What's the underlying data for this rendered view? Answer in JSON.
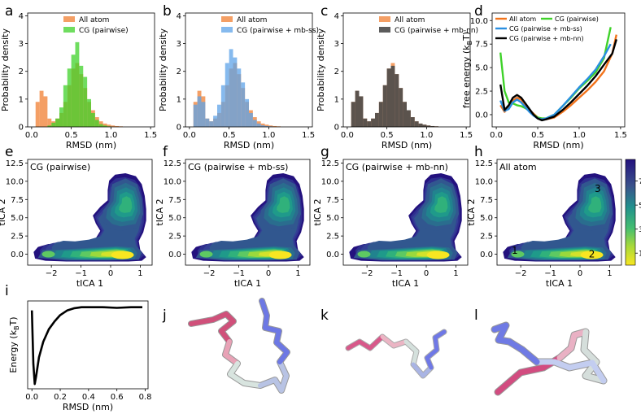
{
  "figure": {
    "panels": [
      "a",
      "b",
      "c",
      "d",
      "e",
      "f",
      "g",
      "h",
      "i",
      "j",
      "k",
      "l"
    ]
  },
  "chart_data": [
    {
      "id": "a",
      "type": "bar",
      "title": "",
      "xlabel": "RMSD (nm)",
      "ylabel": "Probability density",
      "xlim": [
        -0.05,
        1.55
      ],
      "ylim": [
        0,
        4.1
      ],
      "xticks": [
        "0.0",
        "0.5",
        "1.0",
        "1.5"
      ],
      "yticks": [
        "0",
        "1",
        "2",
        "3",
        "4"
      ],
      "bin_width": 0.05,
      "bin_start": 0.05,
      "series": [
        {
          "name": "All atom",
          "color": "#f28e4a",
          "opacity": 0.85,
          "values": [
            0.9,
            1.3,
            1.1,
            0.3,
            0.2,
            0.3,
            0.5,
            0.9,
            1.5,
            2.1,
            2.3,
            1.9,
            1.4,
            0.9,
            0.6,
            0.35,
            0.2,
            0.12,
            0.08,
            0.05,
            0.03,
            0.02
          ]
        },
        {
          "name": "CG (pairwise)",
          "color": "#3fd22a",
          "opacity": 0.75,
          "values": [
            0,
            0,
            0,
            0.05,
            0.15,
            0.3,
            0.7,
            1.5,
            2.1,
            2.6,
            3.05,
            2.2,
            1.8,
            1.0,
            0.5,
            0.25,
            0.1,
            0.05,
            0.02,
            0,
            0,
            0
          ]
        }
      ]
    },
    {
      "id": "b",
      "type": "bar",
      "title": "",
      "xlabel": "RMSD (nm)",
      "ylabel": "Probability density",
      "xlim": [
        -0.05,
        1.55
      ],
      "ylim": [
        0,
        4.1
      ],
      "xticks": [
        "0.0",
        "0.5",
        "1.0",
        "1.5"
      ],
      "yticks": [
        "0",
        "1",
        "2",
        "3",
        "4"
      ],
      "bin_width": 0.05,
      "bin_start": 0.05,
      "series": [
        {
          "name": "All atom",
          "color": "#f28e4a",
          "opacity": 0.85,
          "values": [
            0.9,
            1.3,
            1.1,
            0.3,
            0.2,
            0.3,
            0.5,
            0.9,
            1.5,
            2.1,
            2.3,
            1.9,
            1.4,
            0.9,
            0.6,
            0.35,
            0.2,
            0.12,
            0.08,
            0.05,
            0.03,
            0.02
          ]
        },
        {
          "name": "CG (pairwise + mb-ss)",
          "color": "#5da3e8",
          "opacity": 0.75,
          "values": [
            0.8,
            1.1,
            0.9,
            0.3,
            0.2,
            0.4,
            0.8,
            1.5,
            2.3,
            2.8,
            2.5,
            2.1,
            1.6,
            1.0,
            0.5,
            0.25,
            0.12,
            0.06,
            0.03,
            0.02,
            0,
            0
          ]
        }
      ]
    },
    {
      "id": "c",
      "type": "bar",
      "title": "",
      "xlabel": "RMSD (nm)",
      "ylabel": "Probability density",
      "xlim": [
        -0.05,
        1.55
      ],
      "ylim": [
        0,
        4.1
      ],
      "xticks": [
        "0.0",
        "0.5",
        "1.0",
        "1.5"
      ],
      "yticks": [
        "0",
        "1",
        "2",
        "3",
        "4"
      ],
      "bin_width": 0.05,
      "bin_start": 0.05,
      "series": [
        {
          "name": "All atom",
          "color": "#f28e4a",
          "opacity": 0.85,
          "values": [
            0.9,
            1.3,
            1.1,
            0.3,
            0.2,
            0.3,
            0.5,
            0.9,
            1.5,
            2.1,
            2.3,
            1.9,
            1.4,
            0.9,
            0.6,
            0.35,
            0.2,
            0.12,
            0.08,
            0.05,
            0.03,
            0.02
          ]
        },
        {
          "name": "CG (pairwise + mb-nn)",
          "color": "#4a4a4a",
          "opacity": 0.9,
          "values": [
            0.9,
            1.3,
            1.1,
            0.3,
            0.2,
            0.3,
            0.5,
            0.9,
            1.5,
            2.1,
            2.2,
            1.9,
            1.4,
            0.9,
            0.6,
            0.35,
            0.2,
            0.12,
            0.08,
            0.05,
            0.03,
            0.02
          ]
        }
      ]
    },
    {
      "id": "d",
      "type": "line",
      "title": "",
      "xlabel": "RMSD (nm)",
      "ylabel_prefix": "free energy (k",
      "ylabel_sub": "B",
      "ylabel_suffix": "T)",
      "xlim": [
        -0.05,
        1.55
      ],
      "ylim": [
        -1.3,
        10.8
      ],
      "xticks": [
        "0.0",
        "0.5",
        "1.0",
        "1.5"
      ],
      "yticks": [
        "0.0",
        "2.5",
        "5.0",
        "7.5",
        "10.0"
      ],
      "series": [
        {
          "name": "All atom",
          "color": "#f2731b",
          "x": [
            0.05,
            0.1,
            0.15,
            0.2,
            0.25,
            0.3,
            0.35,
            0.4,
            0.45,
            0.5,
            0.55,
            0.6,
            0.7,
            0.8,
            0.9,
            1.0,
            1.1,
            1.2,
            1.3,
            1.4,
            1.45
          ],
          "y": [
            1.0,
            0.3,
            0.8,
            1.5,
            1.8,
            1.6,
            1.0,
            0.5,
            0.1,
            -0.3,
            -0.5,
            -0.5,
            -0.3,
            0.3,
            1.0,
            1.8,
            2.6,
            3.5,
            4.6,
            6.5,
            8.5
          ]
        },
        {
          "name": "CG (pairwise)",
          "color": "#3fd22a",
          "x": [
            0.05,
            0.1,
            0.15,
            0.2,
            0.25,
            0.3,
            0.35,
            0.4,
            0.45,
            0.5,
            0.55,
            0.6,
            0.7,
            0.8,
            0.9,
            1.0,
            1.1,
            1.2,
            1.3,
            1.38
          ],
          "y": [
            6.6,
            2.5,
            1.3,
            1.2,
            1.0,
            0.9,
            0.7,
            0.4,
            0.0,
            -0.3,
            -0.4,
            -0.4,
            0.0,
            0.9,
            1.8,
            2.8,
            3.6,
            4.5,
            6.0,
            9.3
          ]
        },
        {
          "name": "CG (pairwise + mb-ss)",
          "color": "#2a8fe0",
          "x": [
            0.05,
            0.1,
            0.15,
            0.2,
            0.25,
            0.3,
            0.35,
            0.4,
            0.45,
            0.5,
            0.55,
            0.6,
            0.7,
            0.8,
            0.9,
            1.0,
            1.1,
            1.2,
            1.3,
            1.38
          ],
          "y": [
            1.5,
            0.4,
            0.6,
            1.3,
            1.6,
            1.3,
            0.8,
            0.3,
            -0.1,
            -0.4,
            -0.5,
            -0.4,
            0.0,
            0.9,
            1.9,
            2.9,
            3.8,
            4.8,
            6.2,
            7.5
          ]
        },
        {
          "name": "CG (pairwise + mb-nn)",
          "color": "#000000",
          "x": [
            0.05,
            0.1,
            0.15,
            0.2,
            0.25,
            0.3,
            0.35,
            0.4,
            0.45,
            0.5,
            0.55,
            0.6,
            0.7,
            0.8,
            0.9,
            1.0,
            1.1,
            1.2,
            1.3,
            1.4,
            1.45
          ],
          "y": [
            3.2,
            0.5,
            1.0,
            1.8,
            2.1,
            1.8,
            1.2,
            0.6,
            0.0,
            -0.4,
            -0.6,
            -0.5,
            -0.2,
            0.5,
            1.3,
            2.2,
            3.1,
            4.1,
            5.3,
            6.5,
            8.0
          ]
        }
      ]
    },
    {
      "id": "e",
      "type": "heatmap",
      "title": "CG (pairwise)",
      "xlabel": "tICA 1",
      "ylabel": "tICA 2",
      "xlim": [
        -2.8,
        1.4
      ],
      "ylim": [
        -1.5,
        13.0
      ],
      "xticks": [
        "-2",
        "-1",
        "0",
        "1"
      ],
      "yticks": [
        "0.0",
        "2.5",
        "5.0",
        "7.5",
        "10.0",
        "12.5"
      ]
    },
    {
      "id": "f",
      "type": "heatmap",
      "title": "CG (pairwise + mb-ss)",
      "xlabel": "tICA 1",
      "ylabel": "tICA 2",
      "xlim": [
        -2.8,
        1.4
      ],
      "ylim": [
        -1.5,
        13.0
      ],
      "xticks": [
        "-2",
        "-1",
        "0",
        "1"
      ],
      "yticks": [
        "0.0",
        "2.5",
        "5.0",
        "7.5",
        "10.0",
        "12.5"
      ]
    },
    {
      "id": "g",
      "type": "heatmap",
      "title": "CG (pairwise + mb-nn)",
      "xlabel": "tICA 1",
      "ylabel": "tICA 2",
      "xlim": [
        -2.8,
        1.4
      ],
      "ylim": [
        -1.5,
        13.0
      ],
      "xticks": [
        "-2",
        "-1",
        "0",
        "1"
      ],
      "yticks": [
        "0.0",
        "2.5",
        "5.0",
        "7.5",
        "10.0",
        "12.5"
      ]
    },
    {
      "id": "h",
      "type": "heatmap",
      "title": "All atom",
      "xlabel": "tICA 1",
      "ylabel": "tICA 2",
      "xlim": [
        -2.8,
        1.4
      ],
      "ylim": [
        -1.5,
        13.0
      ],
      "xticks": [
        "-2",
        "-1",
        "0",
        "1"
      ],
      "yticks": [
        "0.0",
        "2.5",
        "5.0",
        "7.5",
        "10.0",
        "12.5"
      ],
      "annotations": [
        {
          "text": "1",
          "x": -2.2,
          "y": 0.5
        },
        {
          "text": "2",
          "x": 0.4,
          "y": 0.0
        },
        {
          "text": "3",
          "x": 0.6,
          "y": 9.0
        }
      ],
      "colorbar": {
        "ticks": [
          "1",
          "3",
          "5",
          "7"
        ],
        "values": [
          1,
          3,
          5,
          7
        ],
        "range": [
          0,
          8.8
        ]
      }
    },
    {
      "id": "i",
      "type": "line",
      "title": "",
      "xlabel": "RMSD (nm)",
      "ylabel_prefix": "Energy (k",
      "ylabel_sub": "B",
      "ylabel_suffix": "T)",
      "xlim": [
        -0.03,
        0.82
      ],
      "ylim": [
        -26,
        2
      ],
      "xticks": [
        "0.0",
        "0.2",
        "0.4",
        "0.6",
        "0.8"
      ],
      "series": [
        {
          "name": "energy",
          "color": "#000000",
          "x": [
            0.0,
            0.01,
            0.02,
            0.03,
            0.05,
            0.08,
            0.12,
            0.16,
            0.2,
            0.25,
            0.3,
            0.35,
            0.4,
            0.5,
            0.6,
            0.7,
            0.78
          ],
          "y": [
            -1.0,
            -18.0,
            -24.5,
            -22.0,
            -16.0,
            -11.0,
            -7.0,
            -4.5,
            -2.5,
            -1.0,
            -0.3,
            0.0,
            0.0,
            0.0,
            -0.2,
            0.0,
            0.0
          ]
        }
      ]
    }
  ]
}
